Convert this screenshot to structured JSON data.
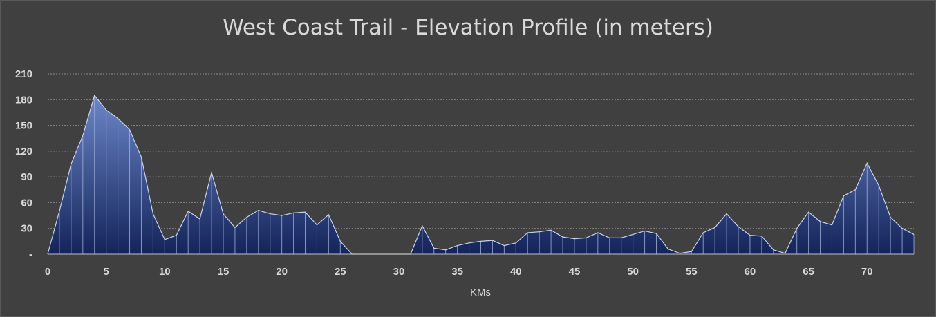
{
  "chart_data": {
    "type": "area",
    "title": "West Coast Trail - Elevation Profile (in meters)",
    "xlabel": "KMs",
    "ylabel": "",
    "ylim": [
      0,
      210
    ],
    "xlim": [
      0,
      74
    ],
    "yticks": [
      {
        "value": 0,
        "label": "-"
      },
      {
        "value": 30,
        "label": "30"
      },
      {
        "value": 60,
        "label": "60"
      },
      {
        "value": 90,
        "label": "90"
      },
      {
        "value": 120,
        "label": "120"
      },
      {
        "value": 150,
        "label": "150"
      },
      {
        "value": 180,
        "label": "180"
      },
      {
        "value": 210,
        "label": "210"
      }
    ],
    "xticks": [
      0,
      5,
      10,
      15,
      20,
      25,
      30,
      35,
      40,
      45,
      50,
      55,
      60,
      65,
      70
    ],
    "grid": true,
    "colors": {
      "fill_top": "#6b86c8",
      "fill_bottom": "#14245a",
      "line": "#c8d4f0",
      "grid": "#8c8c8c"
    },
    "x": [
      0,
      1,
      2,
      3,
      4,
      5,
      6,
      7,
      8,
      9,
      10,
      11,
      12,
      13,
      14,
      15,
      16,
      17,
      18,
      19,
      20,
      21,
      22,
      23,
      24,
      25,
      26,
      27,
      28,
      29,
      30,
      31,
      32,
      33,
      34,
      35,
      36,
      37,
      38,
      39,
      40,
      41,
      42,
      43,
      44,
      45,
      46,
      47,
      48,
      49,
      50,
      51,
      52,
      53,
      54,
      55,
      56,
      57,
      58,
      59,
      60,
      61,
      62,
      63,
      64,
      65,
      66,
      67,
      68,
      69,
      70,
      71,
      72,
      73,
      74
    ],
    "values": [
      0,
      50,
      105,
      138,
      185,
      168,
      158,
      145,
      113,
      47,
      17,
      22,
      50,
      41,
      95,
      47,
      31,
      43,
      51,
      47,
      45,
      48,
      49,
      34,
      46,
      15,
      0,
      0,
      0,
      0,
      0,
      0,
      33,
      7,
      5,
      10,
      13,
      15,
      16,
      10,
      13,
      25,
      26,
      28,
      20,
      18,
      19,
      25,
      19,
      19,
      23,
      27,
      24,
      6,
      1,
      3,
      25,
      31,
      47,
      32,
      22,
      21,
      5,
      1,
      30,
      49,
      38,
      34,
      68,
      75,
      106,
      80,
      43,
      30,
      23
    ]
  }
}
